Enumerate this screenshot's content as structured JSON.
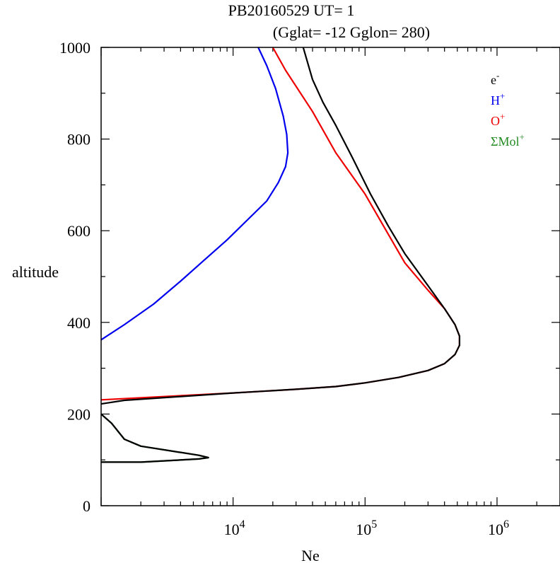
{
  "chart_data": {
    "type": "line",
    "title": "PB20160529   UT=  1",
    "subtitle": "(Gglat= -12   Gglon=  280)",
    "xlabel": "Ne",
    "ylabel": "altitude",
    "xscale": "log",
    "xlim": [
      1000,
      3000000
    ],
    "ylim": [
      0,
      1000
    ],
    "x_ticks": [
      {
        "base": "10",
        "exp": "4",
        "value": 10000
      },
      {
        "base": "10",
        "exp": "5",
        "value": 100000
      },
      {
        "base": "10",
        "exp": "6",
        "value": 1000000
      }
    ],
    "y_ticks": [
      "0",
      "200",
      "400",
      "600",
      "800",
      "1000"
    ],
    "legend_position": "top-right",
    "legend": [
      {
        "base": "e",
        "sup": "-",
        "color": "#000000"
      },
      {
        "base": "H",
        "sup": "+",
        "color": "#0000ee"
      },
      {
        "base": "O",
        "sup": "+",
        "color": "#ee0000"
      },
      {
        "base": "ΣMol",
        "sup": "+",
        "color": "#228b22"
      }
    ],
    "series": [
      {
        "name": "ΣMol+",
        "color": "#228b22",
        "points": [
          [
            1000,
            200
          ],
          [
            1200,
            180
          ],
          [
            1500,
            145
          ],
          [
            2000,
            130
          ],
          [
            5500,
            110
          ],
          [
            6500,
            105
          ],
          [
            5500,
            102
          ],
          [
            2000,
            95
          ],
          [
            1000,
            95
          ]
        ]
      },
      {
        "name": "H+",
        "color": "#0000ee",
        "points": [
          [
            1000,
            362
          ],
          [
            1500,
            395
          ],
          [
            2500,
            440
          ],
          [
            4000,
            490
          ],
          [
            6000,
            535
          ],
          [
            9000,
            580
          ],
          [
            13000,
            625
          ],
          [
            18000,
            665
          ],
          [
            22000,
            705
          ],
          [
            25000,
            740
          ],
          [
            26000,
            770
          ],
          [
            25500,
            810
          ],
          [
            24000,
            850
          ],
          [
            21000,
            910
          ],
          [
            18000,
            960
          ],
          [
            15500,
            1000
          ]
        ]
      },
      {
        "name": "O+",
        "color": "#ee0000",
        "points": [
          [
            1000,
            231
          ],
          [
            10000,
            246
          ],
          [
            30000,
            254
          ],
          [
            60000,
            260
          ],
          [
            100000,
            268
          ],
          [
            180000,
            280
          ],
          [
            300000,
            295
          ],
          [
            400000,
            310
          ],
          [
            480000,
            330
          ],
          [
            520000,
            350
          ],
          [
            520000,
            370
          ],
          [
            480000,
            395
          ],
          [
            400000,
            430
          ],
          [
            300000,
            470
          ],
          [
            200000,
            530
          ],
          [
            100000,
            680
          ],
          [
            60000,
            770
          ],
          [
            40000,
            860
          ],
          [
            25000,
            950
          ],
          [
            20000,
            1000
          ]
        ]
      },
      {
        "name": "e-",
        "color": "#000000",
        "points": [
          [
            1000,
            200
          ],
          [
            1200,
            180
          ],
          [
            1500,
            145
          ],
          [
            2000,
            130
          ],
          [
            5500,
            110
          ],
          [
            6500,
            105
          ],
          [
            5500,
            102
          ],
          [
            2000,
            95
          ],
          [
            1000,
            95
          ],
          null,
          [
            1000,
            222
          ],
          [
            1500,
            230
          ],
          [
            10000,
            246
          ],
          [
            30000,
            254
          ],
          [
            60000,
            260
          ],
          [
            100000,
            268
          ],
          [
            180000,
            280
          ],
          [
            300000,
            295
          ],
          [
            400000,
            310
          ],
          [
            480000,
            330
          ],
          [
            520000,
            350
          ],
          [
            520000,
            370
          ],
          [
            480000,
            395
          ],
          [
            400000,
            430
          ],
          [
            300000,
            480
          ],
          [
            200000,
            550
          ],
          [
            150000,
            610
          ],
          [
            110000,
            680
          ],
          [
            80000,
            760
          ],
          [
            60000,
            830
          ],
          [
            48000,
            880
          ],
          [
            40000,
            930
          ],
          [
            34000,
            1000
          ]
        ]
      }
    ]
  }
}
